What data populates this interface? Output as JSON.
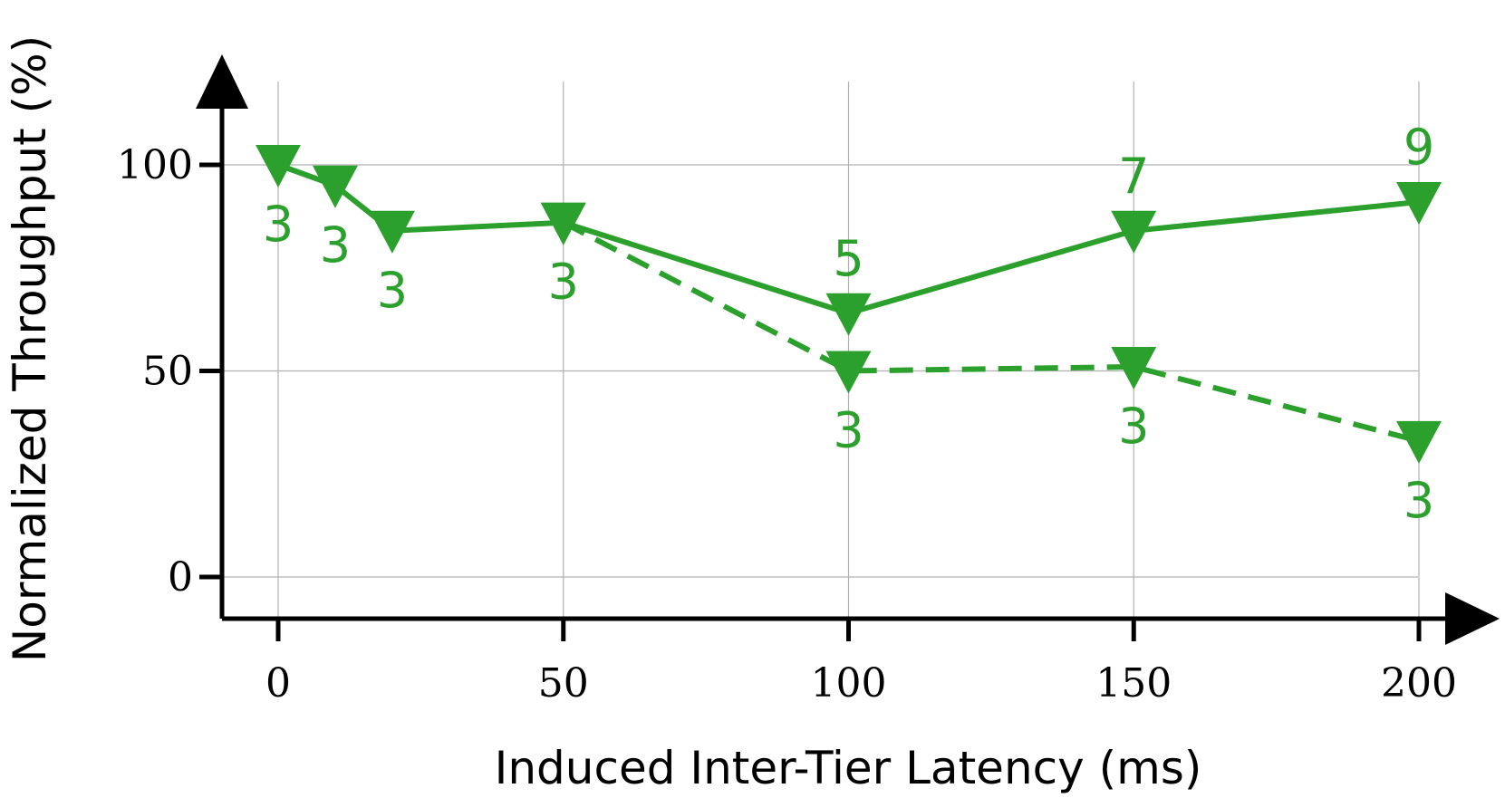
{
  "chart_data": {
    "type": "line",
    "title": "",
    "xlabel": "Induced Inter-Tier Latency (ms)",
    "ylabel": "Normalized Throughput (%)",
    "xlim": [
      -10,
      210
    ],
    "ylim": [
      -10,
      120
    ],
    "xticks": [
      0,
      50,
      100,
      150,
      200
    ],
    "yticks": [
      0,
      50,
      100
    ],
    "xtick_labels": [
      "0",
      "50",
      "100",
      "150",
      "200"
    ],
    "ytick_labels": [
      "0",
      "50",
      "100"
    ],
    "grid": true,
    "legend": "none",
    "marker": "triangle-down",
    "color": "#2ca02c",
    "series": [
      {
        "line_style": "solid",
        "points": [
          {
            "x": 0,
            "y": 100,
            "label": "3",
            "label_pos": "below"
          },
          {
            "x": 10,
            "y": 95,
            "label": "3",
            "label_pos": "below"
          },
          {
            "x": 20,
            "y": 84,
            "label": "3",
            "label_pos": "below"
          },
          {
            "x": 50,
            "y": 86,
            "label": "3",
            "label_pos": "below"
          },
          {
            "x": 100,
            "y": 64,
            "label": "5",
            "label_pos": "above"
          },
          {
            "x": 150,
            "y": 84,
            "label": "7",
            "label_pos": "above"
          },
          {
            "x": 200,
            "y": 91,
            "label": "9",
            "label_pos": "above"
          }
        ]
      },
      {
        "line_style": "dashed",
        "points": [
          {
            "x": 50,
            "y": 86
          },
          {
            "x": 100,
            "y": 50,
            "label": "3",
            "label_pos": "below"
          },
          {
            "x": 150,
            "y": 51,
            "label": "3",
            "label_pos": "below"
          },
          {
            "x": 200,
            "y": 33,
            "label": "3",
            "label_pos": "below"
          }
        ]
      }
    ]
  }
}
